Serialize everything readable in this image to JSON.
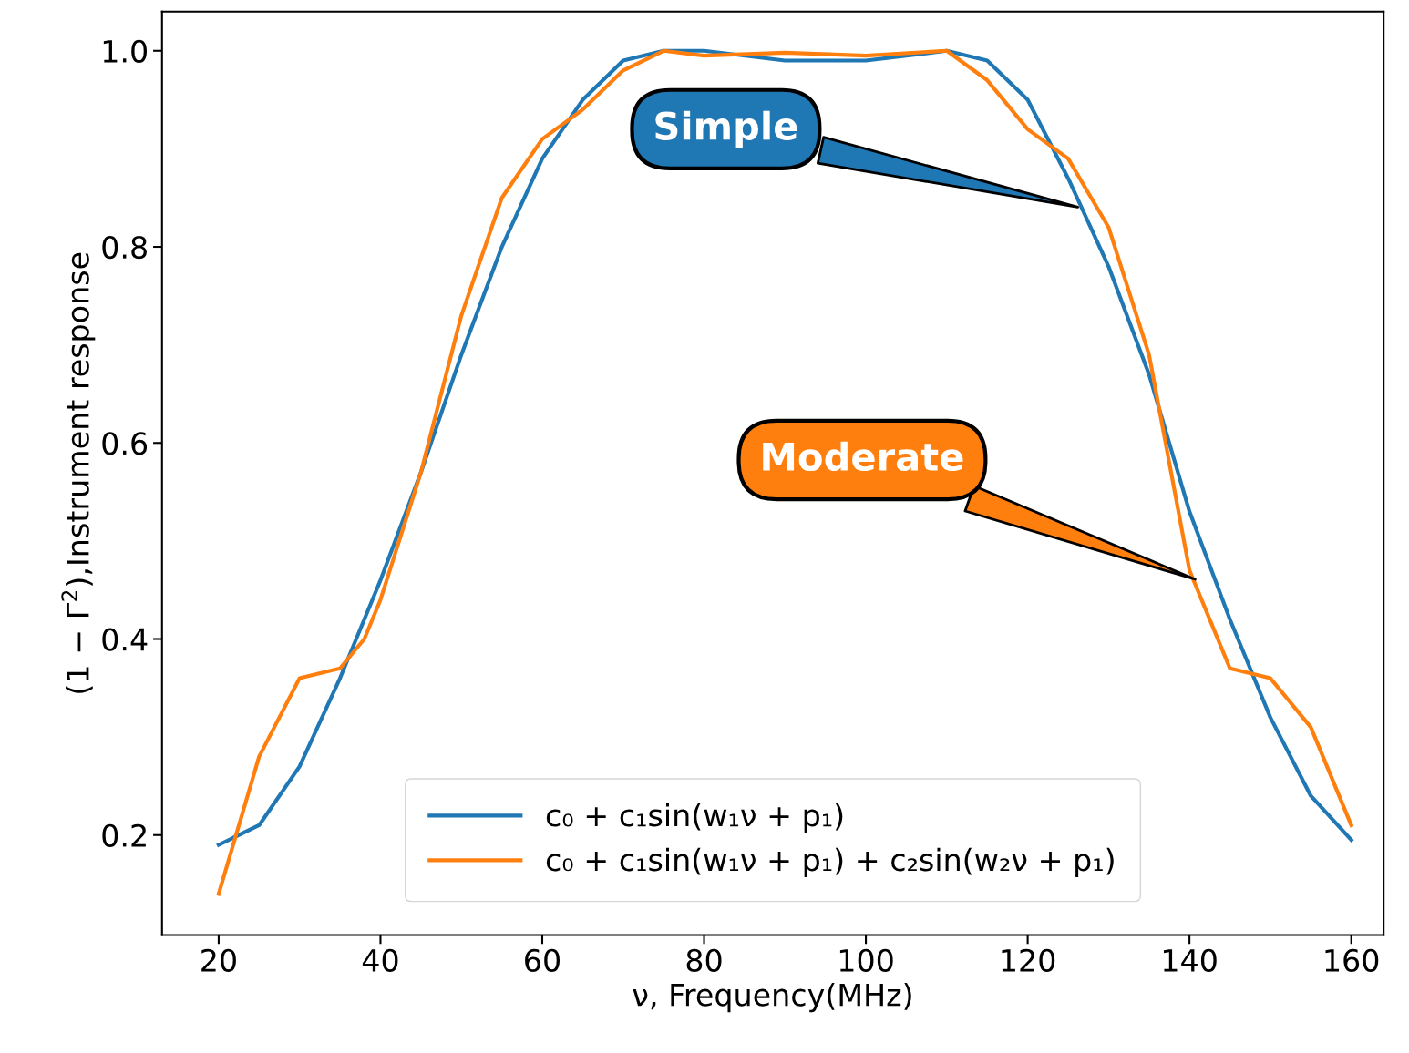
{
  "chart_data": {
    "type": "line",
    "xlabel": "ν, Frequency(MHz)",
    "ylabel": "(1 − Γ$^{2}$),Instrument response",
    "x": [
      20,
      25,
      30,
      35,
      38,
      40,
      45,
      50,
      55,
      60,
      65,
      70,
      75,
      80,
      90,
      100,
      110,
      115,
      120,
      125,
      130,
      135,
      140,
      145,
      150,
      155,
      160
    ],
    "series": [
      {
        "name": "c₀ + c₁sin(w₁ν + p₁)",
        "color": "#1f77b4",
        "values": [
          0.19,
          0.21,
          0.27,
          0.36,
          0.42,
          0.46,
          0.57,
          0.69,
          0.8,
          0.89,
          0.95,
          0.99,
          1.0,
          1.0,
          0.99,
          0.99,
          1.0,
          0.99,
          0.95,
          0.87,
          0.78,
          0.67,
          0.53,
          0.42,
          0.32,
          0.24,
          0.195
        ]
      },
      {
        "name": "c₀ + c₁sin(w₁ν + p₁) + c₂sin(w₂ν + p₁)",
        "color": "#ff7f0e",
        "values": [
          0.14,
          0.28,
          0.36,
          0.37,
          0.4,
          0.44,
          0.57,
          0.73,
          0.85,
          0.91,
          0.94,
          0.98,
          1.0,
          0.995,
          0.998,
          0.995,
          1.0,
          0.97,
          0.92,
          0.89,
          0.82,
          0.69,
          0.47,
          0.37,
          0.36,
          0.31,
          0.21
        ]
      }
    ],
    "xlim": [
      13,
      164
    ],
    "ylim": [
      0.098,
      1.04
    ],
    "xticks": [
      20,
      40,
      60,
      80,
      100,
      120,
      140,
      160
    ],
    "yticks": [
      {
        "value": 0.2,
        "label": "0.2"
      },
      {
        "value": 0.4,
        "label": "0.4"
      },
      {
        "value": 0.6,
        "label": "0.6"
      },
      {
        "value": 0.8,
        "label": "0.8"
      },
      {
        "value": 1.0,
        "label": "1.0"
      }
    ],
    "annotations": [
      {
        "text": "Simple",
        "x": 126.5,
        "y": 0.84
      },
      {
        "text": "Moderate",
        "x": 141,
        "y": 0.46
      }
    ],
    "legend": "bottom",
    "grid": false,
    "marker": "none",
    "line_style": "solid"
  }
}
